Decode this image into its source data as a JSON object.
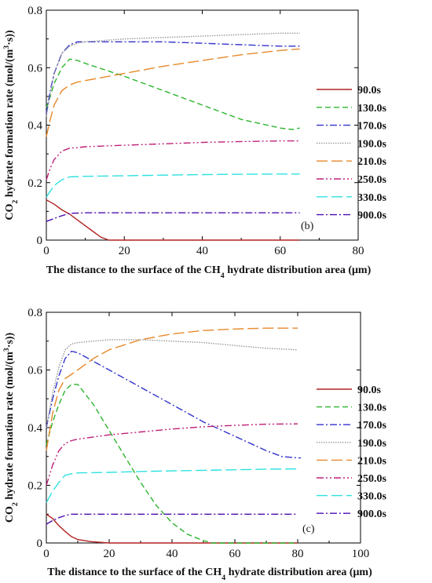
{
  "chart_data": [
    {
      "type": "line",
      "panel_label": "(b)",
      "title": "",
      "xlabel": "The distance to the surface of the CH₄ hydrate distribution area (μm)",
      "ylabel": "CO₂ hydrate formation rate (mol/(m³·s))",
      "xlim": [
        0,
        80
      ],
      "ylim": [
        0,
        0.8
      ],
      "xticks": [
        0,
        20,
        40,
        60,
        80
      ],
      "yticks": [
        0,
        0.2,
        0.4,
        0.6,
        0.8
      ],
      "xtick_labels": [
        "0",
        "20",
        "40",
        "60",
        "80"
      ],
      "ytick_labels": [
        "0",
        "0.2",
        "0.4",
        "0.6",
        "0.8"
      ],
      "grid": false,
      "legend_position": "right",
      "series": [
        {
          "name": "90.0s",
          "color": "#b22222",
          "dash": "solid",
          "x": [
            0,
            2,
            4,
            6,
            8,
            10,
            12,
            14,
            16,
            20,
            30,
            40,
            50,
            60,
            65
          ],
          "y": [
            0.14,
            0.125,
            0.105,
            0.09,
            0.07,
            0.05,
            0.03,
            0.01,
            0.0,
            0.0,
            0.0,
            0.0,
            0.0,
            0.0,
            0.0
          ]
        },
        {
          "name": "130.0s",
          "color": "#2db52d",
          "dash": "dashed",
          "x": [
            0,
            1,
            2,
            4,
            6,
            8,
            10,
            20,
            30,
            40,
            50,
            60,
            63,
            65
          ],
          "y": [
            0.46,
            0.5,
            0.545,
            0.6,
            0.63,
            0.625,
            0.615,
            0.57,
            0.52,
            0.47,
            0.42,
            0.39,
            0.385,
            0.39
          ]
        },
        {
          "name": "170.0s",
          "color": "#3333cc",
          "dash": "dashdot",
          "x": [
            0,
            1,
            2,
            4,
            6,
            8,
            10,
            20,
            30,
            40,
            50,
            60,
            65
          ],
          "y": [
            0.44,
            0.52,
            0.58,
            0.65,
            0.68,
            0.69,
            0.69,
            0.69,
            0.69,
            0.685,
            0.68,
            0.675,
            0.675
          ]
        },
        {
          "name": "190.0s",
          "color": "#999999",
          "dash": "dotted",
          "x": [
            0,
            1,
            2,
            4,
            6,
            8,
            10,
            20,
            30,
            40,
            50,
            60,
            65
          ],
          "y": [
            0.43,
            0.51,
            0.58,
            0.65,
            0.675,
            0.685,
            0.69,
            0.7,
            0.705,
            0.71,
            0.715,
            0.72,
            0.72
          ]
        },
        {
          "name": "210.0s",
          "color": "#e8892a",
          "dash": "longdash",
          "x": [
            0,
            1,
            2,
            4,
            6,
            8,
            10,
            20,
            30,
            40,
            50,
            60,
            65
          ],
          "y": [
            0.36,
            0.42,
            0.47,
            0.52,
            0.54,
            0.55,
            0.555,
            0.58,
            0.605,
            0.625,
            0.645,
            0.66,
            0.665
          ]
        },
        {
          "name": "250.0s",
          "color": "#c0207a",
          "dash": "dashdotdot",
          "x": [
            0,
            1,
            2,
            4,
            6,
            8,
            10,
            20,
            30,
            40,
            50,
            60,
            65
          ],
          "y": [
            0.21,
            0.25,
            0.28,
            0.31,
            0.32,
            0.322,
            0.325,
            0.33,
            0.335,
            0.34,
            0.343,
            0.345,
            0.345
          ]
        },
        {
          "name": "330.0s",
          "color": "#2ee0e0",
          "dash": "longdash",
          "x": [
            0,
            1,
            2,
            4,
            6,
            10,
            20,
            30,
            40,
            50,
            60,
            65
          ],
          "y": [
            0.15,
            0.17,
            0.19,
            0.21,
            0.22,
            0.222,
            0.224,
            0.226,
            0.228,
            0.229,
            0.23,
            0.23
          ]
        },
        {
          "name": "900.0s",
          "color": "#4b0fb0",
          "dash": "dashdot",
          "x": [
            0,
            2,
            4,
            6,
            10,
            20,
            30,
            40,
            50,
            60,
            65
          ],
          "y": [
            0.065,
            0.075,
            0.085,
            0.093,
            0.095,
            0.095,
            0.095,
            0.095,
            0.095,
            0.095,
            0.095
          ]
        }
      ]
    },
    {
      "type": "line",
      "panel_label": "(c)",
      "title": "",
      "xlabel": "The distance to the surface of the CH₄ hydrate distribution area (μm)",
      "ylabel": "CO₂ hydrate formation rate (mol/(m³·s))",
      "xlim": [
        0,
        100
      ],
      "ylim": [
        0,
        0.8
      ],
      "xticks": [
        0,
        20,
        40,
        60,
        80,
        100
      ],
      "yticks": [
        0,
        0.2,
        0.4,
        0.6,
        0.8
      ],
      "xtick_labels": [
        "0",
        "20",
        "40",
        "60",
        "80",
        "100"
      ],
      "ytick_labels": [
        "0",
        "0.2",
        "0.4",
        "0.6",
        "0.8"
      ],
      "grid": false,
      "legend_position": "right",
      "series": [
        {
          "name": "90.0s",
          "color": "#b22222",
          "dash": "solid",
          "x": [
            0,
            2,
            4,
            6,
            8,
            10,
            14,
            20,
            30,
            40,
            60,
            80
          ],
          "y": [
            0.1,
            0.085,
            0.06,
            0.04,
            0.022,
            0.012,
            0.005,
            0.0,
            0.0,
            0.0,
            0.0,
            0.0
          ]
        },
        {
          "name": "130.0s",
          "color": "#2db52d",
          "dash": "dashed",
          "x": [
            0,
            2,
            4,
            6,
            8,
            10,
            15,
            20,
            25,
            30,
            35,
            40,
            45,
            50,
            53,
            60,
            70,
            80
          ],
          "y": [
            0.34,
            0.42,
            0.48,
            0.53,
            0.55,
            0.55,
            0.48,
            0.39,
            0.3,
            0.21,
            0.13,
            0.07,
            0.03,
            0.008,
            0.0,
            0.0,
            0.0,
            0.0
          ]
        },
        {
          "name": "170.0s",
          "color": "#3333cc",
          "dash": "dashdot",
          "x": [
            0,
            2,
            4,
            6,
            8,
            10,
            20,
            30,
            40,
            50,
            60,
            70,
            75,
            80,
            81
          ],
          "y": [
            0.4,
            0.5,
            0.58,
            0.64,
            0.665,
            0.66,
            0.6,
            0.54,
            0.48,
            0.42,
            0.37,
            0.32,
            0.3,
            0.295,
            0.295
          ]
        },
        {
          "name": "190.0s",
          "color": "#999999",
          "dash": "dotted",
          "x": [
            0,
            2,
            4,
            6,
            8,
            10,
            20,
            30,
            40,
            50,
            60,
            70,
            80
          ],
          "y": [
            0.4,
            0.52,
            0.61,
            0.67,
            0.69,
            0.695,
            0.705,
            0.705,
            0.7,
            0.695,
            0.685,
            0.675,
            0.67
          ]
        },
        {
          "name": "210.0s",
          "color": "#e8892a",
          "dash": "longdash",
          "x": [
            0,
            2,
            4,
            6,
            8,
            10,
            15,
            20,
            30,
            40,
            50,
            60,
            70,
            80
          ],
          "y": [
            0.32,
            0.45,
            0.53,
            0.57,
            0.585,
            0.6,
            0.64,
            0.67,
            0.705,
            0.725,
            0.737,
            0.742,
            0.745,
            0.745
          ]
        },
        {
          "name": "250.0s",
          "color": "#c0207a",
          "dash": "dashdotdot",
          "x": [
            0,
            2,
            4,
            6,
            8,
            10,
            20,
            30,
            40,
            50,
            60,
            70,
            80
          ],
          "y": [
            0.2,
            0.27,
            0.32,
            0.345,
            0.355,
            0.36,
            0.375,
            0.385,
            0.395,
            0.403,
            0.408,
            0.412,
            0.413
          ]
        },
        {
          "name": "330.0s",
          "color": "#2ee0e0",
          "dash": "longdash",
          "x": [
            0,
            2,
            4,
            6,
            8,
            10,
            20,
            30,
            40,
            50,
            60,
            70,
            80
          ],
          "y": [
            0.14,
            0.18,
            0.21,
            0.235,
            0.24,
            0.243,
            0.245,
            0.248,
            0.25,
            0.252,
            0.254,
            0.256,
            0.257
          ]
        },
        {
          "name": "900.0s",
          "color": "#4b0fb0",
          "dash": "dashdot",
          "x": [
            0,
            2,
            4,
            6,
            8,
            10,
            20,
            30,
            40,
            50,
            60,
            70,
            80
          ],
          "y": [
            0.065,
            0.078,
            0.088,
            0.095,
            0.1,
            0.1,
            0.1,
            0.1,
            0.1,
            0.1,
            0.1,
            0.1,
            0.1
          ]
        }
      ]
    }
  ]
}
